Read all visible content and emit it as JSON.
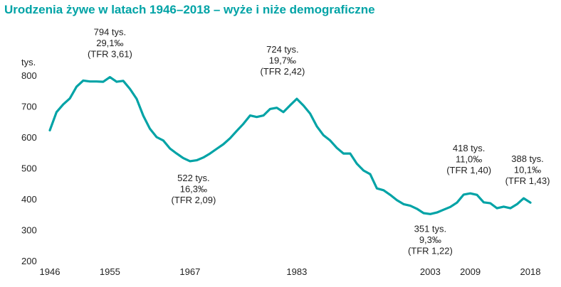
{
  "title": "Urodzenia żywe w latach 1946–2018 – wyże i niże demograficzne",
  "chart_data": {
    "type": "line",
    "title": "Urodzenia żywe w latach 1946–2018 – wyże i niże demograficzne",
    "ylabel": "tys.",
    "ylim": [
      200,
      800
    ],
    "yticks": [
      "200",
      "300",
      "400",
      "500",
      "600",
      "700",
      "800"
    ],
    "xlim": [
      1946,
      2018
    ],
    "xticks": [
      "1946",
      "1955",
      "1967",
      "1983",
      "2003",
      "2009",
      "2018"
    ],
    "grid": false,
    "line_color": "#00a3a6",
    "series": [
      {
        "x": [
          1946,
          1947,
          1948,
          1949,
          1950,
          1951,
          1952,
          1953,
          1954,
          1955,
          1956,
          1957,
          1958,
          1959,
          1960,
          1961,
          1962,
          1963,
          1964,
          1965,
          1966,
          1967,
          1968,
          1969,
          1970,
          1971,
          1972,
          1973,
          1974,
          1975,
          1976,
          1977,
          1978,
          1979,
          1980,
          1981,
          1982,
          1983,
          1984,
          1985,
          1986,
          1987,
          1988,
          1989,
          1990,
          1991,
          1992,
          1993,
          1994,
          1995,
          1996,
          1997,
          1998,
          1999,
          2000,
          2001,
          2002,
          2003,
          2004,
          2005,
          2006,
          2007,
          2008,
          2009,
          2010,
          2011,
          2012,
          2013,
          2014,
          2015,
          2016,
          2017,
          2018
        ],
        "values": [
          622,
          681,
          706,
          725,
          763,
          783,
          780,
          780,
          779,
          794,
          779,
          782,
          756,
          724,
          669,
          627,
          600,
          589,
          563,
          547,
          532,
          522,
          525,
          534,
          547,
          562,
          577,
          596,
          620,
          643,
          670,
          665,
          670,
          691,
          695,
          681,
          703,
          724,
          702,
          676,
          635,
          606,
          589,
          565,
          547,
          547,
          514,
          492,
          480,
          434,
          428,
          413,
          396,
          383,
          378,
          368,
          354,
          351,
          356,
          365,
          374,
          388,
          414,
          418,
          413,
          389,
          386,
          370,
          375,
          370,
          383,
          402,
          388
        ]
      }
    ],
    "annotations": [
      {
        "year": 1955,
        "lines": [
          "794 tys.",
          "29,1‰",
          "(TFR 3,61)"
        ]
      },
      {
        "year": 1967,
        "lines": [
          "522 tys.",
          "16,3‰",
          "(TFR 2,09)"
        ]
      },
      {
        "year": 1983,
        "lines": [
          "724 tys.",
          "19,7‰",
          "(TFR 2,42)"
        ]
      },
      {
        "year": 2003,
        "lines": [
          "351 tys.",
          "9,3‰",
          "(TFR 1,22)"
        ]
      },
      {
        "year": 2009,
        "lines": [
          "418 tys.",
          "11,0‰",
          "(TFR 1,40)"
        ]
      },
      {
        "year": 2018,
        "lines": [
          "388 tys.",
          "10,1‰",
          "(TFR 1,43)"
        ]
      }
    ]
  }
}
